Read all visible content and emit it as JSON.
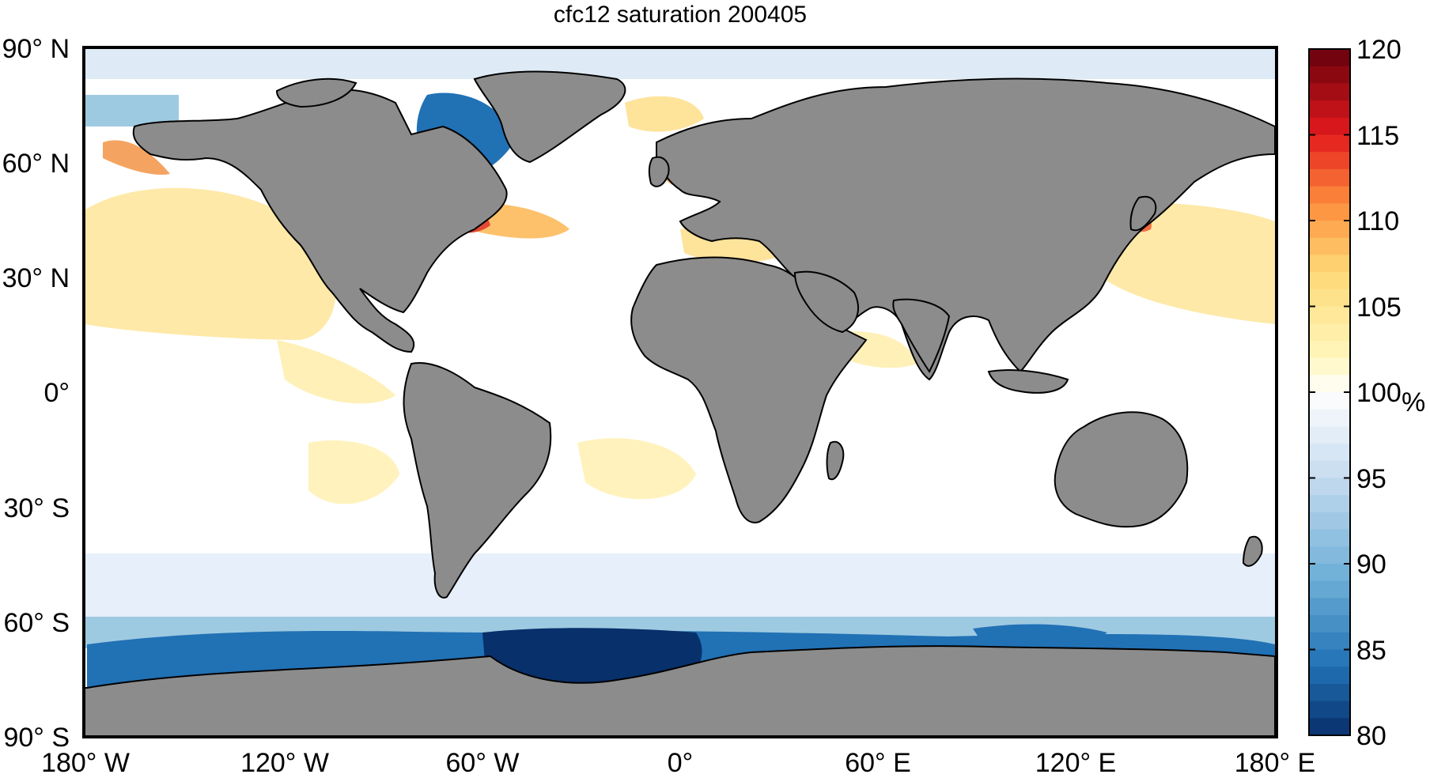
{
  "title": "cfc12 saturation 200405",
  "latitude_labels": [
    "90° N",
    "60° N",
    "30° N",
    "0°",
    "30° S",
    "60° S",
    "90° S"
  ],
  "longitude_labels": [
    "180° W",
    "120° W",
    "60° W",
    "0°",
    "60° E",
    "120° E",
    "180° E"
  ],
  "colorbar": {
    "unit": "%",
    "ticks": [
      "120",
      "115",
      "110",
      "105",
      "100",
      "95",
      "90",
      "85",
      "80"
    ],
    "min": 80,
    "max": 120,
    "levels": 40
  },
  "colors": {
    "land": "#8c8c8c",
    "ocean_neutral": "#ffffff",
    "undersat_strong": "#08306b",
    "supersat_strong": "#67000d"
  }
}
